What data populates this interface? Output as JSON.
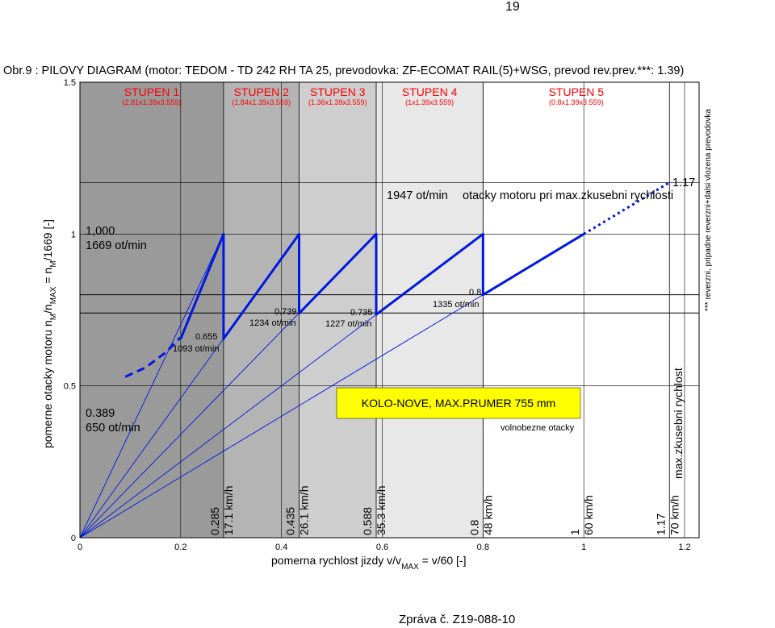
{
  "page": {
    "number": "19",
    "footer": "Zpráva č. Z19-088-10"
  },
  "figure": {
    "title": "Obr.9 : PILOVY DIAGRAM (motor: TEDOM - TD 242 RH TA 25,  prevodovka: ZF-ECOMAT RAIL(5)+WSG,  prevod rev.prev.***: 1.39)"
  },
  "chart_data": {
    "type": "line",
    "title": "PILOVY DIAGRAM",
    "xlabel": {
      "main": "pomerna rychlost jizdy  v/v",
      "sub": "MAX",
      "tail": " = v/60 [-]"
    },
    "ylabel": {
      "p1": "pomerne otacky motoru   n",
      "s1": "M",
      "p2": "/n",
      "s2": "MAX",
      "p3": " = n",
      "s3": "M",
      "p4": "/1669 [-]"
    },
    "xlim": [
      0,
      1.2
    ],
    "ylim": [
      0,
      1.5
    ],
    "xticks": [
      "0",
      "0.2",
      "0.4",
      "0.6",
      "0.8",
      "1",
      "1.2"
    ],
    "xtick_values": [
      0,
      0.2,
      0.4,
      0.6,
      0.8,
      1.0,
      1.2
    ],
    "yticks": [
      "0",
      "0.5",
      "1",
      "1.5"
    ],
    "ytick_values": [
      0,
      0.5,
      1,
      1.5
    ],
    "grid": true,
    "stages": [
      {
        "name": "STUPEN 1",
        "ratio": "(2.81x1.39x3.559)",
        "x_start": 0,
        "x_end": 0.285,
        "shade": "#9a9a9a"
      },
      {
        "name": "STUPEN 2",
        "ratio": "(1.84x1.39x3.559)",
        "x_start": 0.285,
        "x_end": 0.435,
        "shade": "#b4b4b4"
      },
      {
        "name": "STUPEN 3",
        "ratio": "(1.36x1.39x3.559)",
        "x_start": 0.435,
        "x_end": 0.588,
        "shade": "#cecece"
      },
      {
        "name": "STUPEN 4",
        "ratio": "(1x1.39x3.559)",
        "x_start": 0.588,
        "x_end": 0.8,
        "shade": "#e8e8e8"
      },
      {
        "name": "STUPEN 5",
        "ratio": "(0.8x1.39x3.559)",
        "x_start": 0.8,
        "x_end": 1.17,
        "shade": "#ffffff"
      }
    ],
    "stage_color": "#ff0000",
    "series": [
      {
        "style": "solid",
        "color": "#0018e0",
        "points": [
          [
            0.2,
            0.655
          ],
          [
            0.285,
            1.0
          ],
          [
            0.285,
            0.655
          ],
          [
            0.435,
            1.0
          ],
          [
            0.435,
            0.739
          ],
          [
            0.588,
            1.0
          ],
          [
            0.588,
            0.735
          ],
          [
            0.8,
            1.0
          ],
          [
            0.8,
            0.8
          ],
          [
            1.0,
            1.0
          ]
        ]
      },
      {
        "style": "dotted",
        "color": "#0018e0",
        "points": [
          [
            1.0,
            1.0
          ],
          [
            1.17,
            1.17
          ]
        ]
      },
      {
        "style": "dashed",
        "color": "#0018e0",
        "points": [
          [
            0.09,
            0.53
          ],
          [
            0.13,
            0.56
          ],
          [
            0.17,
            0.61
          ],
          [
            0.2,
            0.66
          ]
        ]
      }
    ],
    "rays": [
      {
        "color": "#0018e0",
        "points": [
          [
            0,
            0
          ],
          [
            0.285,
            1.0
          ]
        ]
      },
      {
        "color": "#0018e0",
        "points": [
          [
            0,
            0
          ],
          [
            0.435,
            1.0
          ]
        ]
      },
      {
        "color": "#0018e0",
        "points": [
          [
            0,
            0
          ],
          [
            0.588,
            1.0
          ]
        ]
      },
      {
        "color": "#0018e0",
        "points": [
          [
            0,
            0
          ],
          [
            0.8,
            1.0
          ]
        ]
      },
      {
        "color": "#0018e0",
        "points": [
          [
            0,
            0
          ],
          [
            0.8,
            0.8
          ]
        ]
      }
    ],
    "hlines": [
      0.8,
      0.74
    ],
    "point_labels": [
      {
        "l1": "1,000",
        "l2": "1669 ot/min"
      },
      {
        "l1": "0.655",
        "l2": "1093 ot/min"
      },
      {
        "l1": "0.739",
        "l2": "1234 ot/min"
      },
      {
        "l1": "0.735",
        "l2": "1227 ot/min"
      },
      {
        "l1": "0.8",
        "l2": "1335 ot/min"
      },
      {
        "l1": "0.389",
        "l2": "650 ot/min"
      },
      {
        "l1": "1.17",
        "l2": ""
      }
    ],
    "speed_labels": [
      {
        "ratio": "0.285",
        "speed": "17.1 km/h"
      },
      {
        "ratio": "0.435",
        "speed": "26.1 km/h"
      },
      {
        "ratio": "0.588",
        "speed": "35.3 km/h"
      },
      {
        "ratio": "0.8",
        "speed": "48 km/h"
      },
      {
        "ratio": "1",
        "speed": "60 km/h"
      },
      {
        "ratio": "1.17",
        "speed": "70 km/h"
      }
    ],
    "annotations": {
      "max_speed_rpm": "1947 ot/min",
      "max_speed_text": "otacky motoru pri max.zkusebni rychlosti",
      "wheel_box": "KOLO-NOVE, MAX.PRUMER 755 mm",
      "wheel_box_color": "#ffff00",
      "idle_text": "volnobezne otacky",
      "max_speed_vertical": "max.zkusebni rychlost",
      "reverse_note": "*** reverzni, pripadne reverzni+dalsi vlozena prevodovka"
    }
  }
}
